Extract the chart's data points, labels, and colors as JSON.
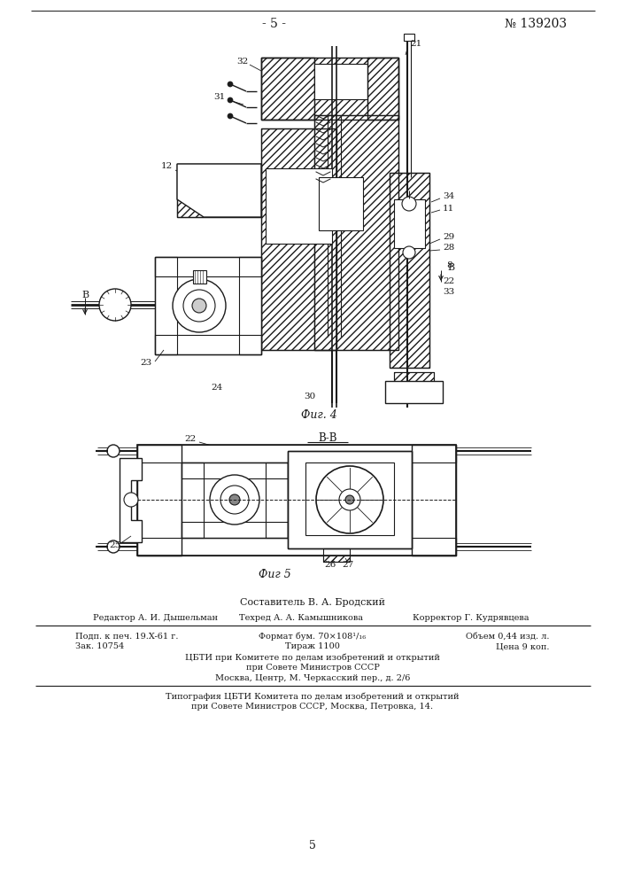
{
  "bg": "#f5f5f0",
  "lc": "#1a1a1a",
  "page_number_center": "- 5 -",
  "patent_number": "№ 139203",
  "fig4_caption": "Фиг. 4",
  "fig5_caption": "Фиг 5",
  "section_label": "В-В",
  "composer_line": "Составитель В. А. Бродский",
  "editor_text": "Редактор А. И. Дышельман",
  "techred_text": "Техред А. А. Камышникова",
  "corrector_text": "Корректор Г. Кудрявцева",
  "podp_line": "Подп. к печ. 19.X-61 г.",
  "zak_line": "Зак. 10754",
  "format_line": "Формат бум. 70×108¹/₁₆",
  "tirazh_line": "Тираж 1100",
  "obem_line": "Объем 0,44 изд. л.",
  "cena_line": "Цена 9 коп.",
  "cbti_line1": "ЦБТИ при Комитете по делам изобретений и открытий",
  "cbti_line2": "при Совете Министров СССР",
  "cbti_line3": "Москва, Центр, М. Черкасский пер., д. 2/6",
  "tipograf_line1": "Типография ЦБТИ Комитета по делам изобретений и открытий",
  "tipograf_line2": "при Совете Министров СССР, Москва, Петровка, 14.",
  "page_num_bottom": "5"
}
